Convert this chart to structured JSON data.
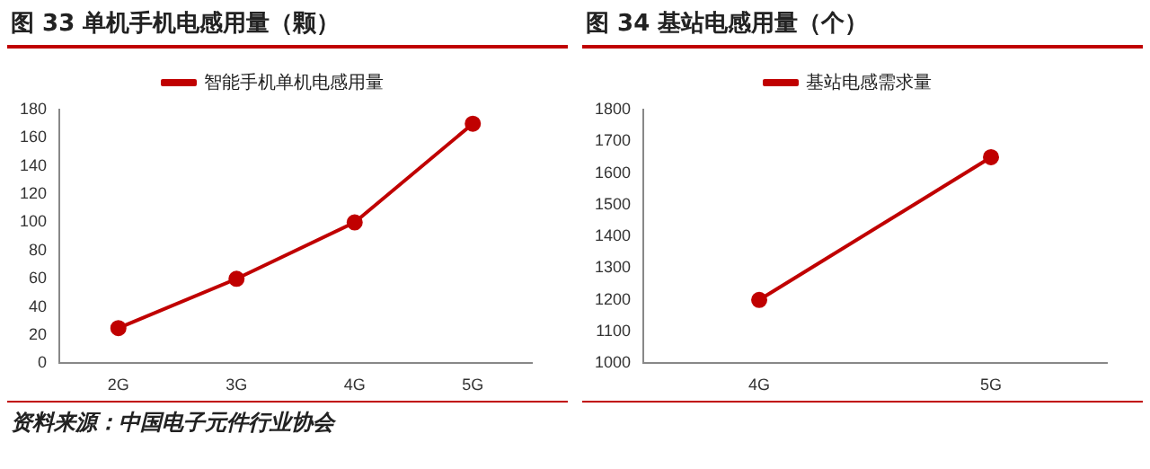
{
  "chart_data": [
    {
      "type": "line",
      "title": "图 33 单机手机电感用量（颗）",
      "categories": [
        "2G",
        "3G",
        "4G",
        "5G"
      ],
      "series": [
        {
          "name": "智能手机单机电感用量",
          "color": "#c00000",
          "values": [
            25,
            60,
            100,
            170
          ]
        }
      ],
      "ylim": [
        0,
        180
      ],
      "yticks": [
        0,
        20,
        40,
        60,
        80,
        100,
        120,
        140,
        160,
        180
      ],
      "legend": "top",
      "marker": "circle",
      "grid": false,
      "annotations": [
        "资料来源：中国电子元件行业协会"
      ]
    },
    {
      "type": "line",
      "title": "图 34 基站电感用量（个）",
      "categories": [
        "4G",
        "5G"
      ],
      "series": [
        {
          "name": "基站电感需求量",
          "color": "#c00000",
          "values": [
            1200,
            1650
          ]
        }
      ],
      "ylim": [
        1000,
        1800
      ],
      "yticks": [
        1000,
        1100,
        1200,
        1300,
        1400,
        1500,
        1600,
        1700,
        1800
      ],
      "legend": "top",
      "marker": "circle",
      "grid": false
    }
  ]
}
